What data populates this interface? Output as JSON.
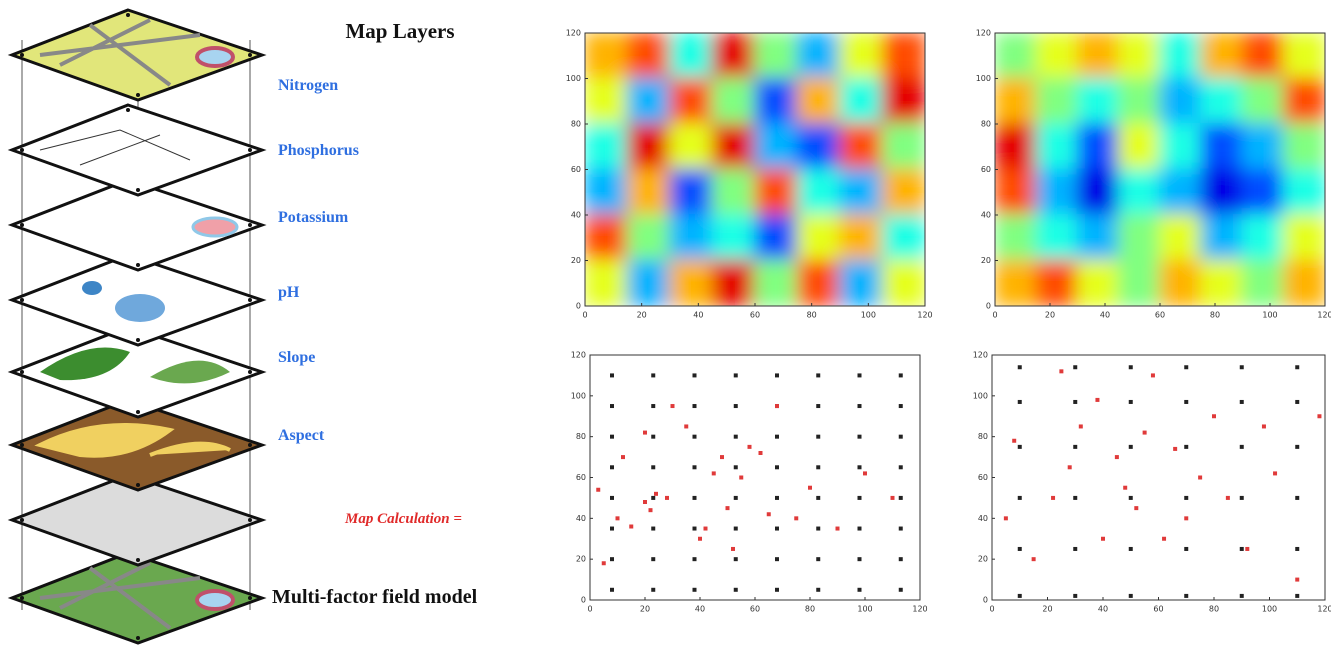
{
  "diagram": {
    "title": "Map Layers",
    "layers": [
      "Nitrogen",
      "Phosphorus",
      "Potassium",
      "pH",
      "Slope",
      "Aspect"
    ],
    "calculation": "Map Calculation =",
    "result": "Multi-factor field model"
  },
  "chart_data": [
    {
      "type": "heatmap",
      "colormap": "jet",
      "clim": [
        0,
        1
      ],
      "xlim": [
        0,
        120
      ],
      "ylim": [
        0,
        120
      ],
      "xticks": [
        0,
        20,
        40,
        60,
        80,
        100,
        120
      ],
      "yticks": [
        0,
        20,
        40,
        60,
        80,
        100,
        120
      ],
      "values": [
        [
          0.7,
          0.8,
          0.4,
          0.9,
          0.5,
          0.3,
          0.6,
          0.8
        ],
        [
          0.6,
          0.3,
          0.8,
          0.5,
          0.2,
          0.7,
          0.4,
          0.9
        ],
        [
          0.4,
          0.9,
          0.6,
          0.9,
          0.3,
          0.2,
          0.8,
          0.5
        ],
        [
          0.3,
          0.7,
          0.2,
          0.5,
          0.8,
          0.4,
          0.3,
          0.7
        ],
        [
          0.8,
          0.5,
          0.3,
          0.4,
          0.2,
          0.6,
          0.7,
          0.4
        ],
        [
          0.6,
          0.3,
          0.7,
          0.9,
          0.5,
          0.8,
          0.3,
          0.6
        ]
      ]
    },
    {
      "type": "heatmap",
      "colormap": "jet",
      "clim": [
        0,
        1
      ],
      "xlim": [
        0,
        120
      ],
      "ylim": [
        0,
        120
      ],
      "xticks": [
        0,
        20,
        40,
        60,
        80,
        100,
        120
      ],
      "yticks": [
        0,
        20,
        40,
        60,
        80,
        100,
        120
      ],
      "values": [
        [
          0.5,
          0.6,
          0.7,
          0.6,
          0.4,
          0.7,
          0.8,
          0.6
        ],
        [
          0.7,
          0.5,
          0.4,
          0.5,
          0.3,
          0.4,
          0.5,
          0.8
        ],
        [
          0.9,
          0.4,
          0.2,
          0.6,
          0.4,
          0.2,
          0.3,
          0.5
        ],
        [
          0.8,
          0.3,
          0.1,
          0.4,
          0.3,
          0.1,
          0.2,
          0.4
        ],
        [
          0.5,
          0.4,
          0.3,
          0.5,
          0.6,
          0.3,
          0.4,
          0.6
        ],
        [
          0.7,
          0.8,
          0.6,
          0.5,
          0.7,
          0.6,
          0.5,
          0.7
        ]
      ]
    },
    {
      "type": "scatter",
      "xlim": [
        0,
        120
      ],
      "ylim": [
        0,
        120
      ],
      "xticks": [
        0,
        20,
        40,
        60,
        80,
        100,
        120
      ],
      "yticks": [
        0,
        20,
        40,
        60,
        80,
        100,
        120
      ],
      "series": [
        {
          "color": "#222222",
          "x": [
            8,
            23,
            38,
            53,
            68,
            83,
            98,
            113,
            8,
            23,
            38,
            53,
            68,
            83,
            98,
            113,
            8,
            23,
            38,
            53,
            68,
            83,
            98,
            113,
            8,
            23,
            38,
            53,
            68,
            83,
            98,
            113,
            8,
            23,
            38,
            53,
            68,
            83,
            98,
            113,
            8,
            23,
            38,
            53,
            68,
            83,
            98,
            113,
            8,
            23,
            38,
            53,
            68,
            83,
            98,
            113,
            8,
            23,
            38,
            53,
            68,
            83,
            98,
            113
          ],
          "y": [
            5,
            5,
            5,
            5,
            5,
            5,
            5,
            5,
            20,
            20,
            20,
            20,
            20,
            20,
            20,
            20,
            35,
            35,
            35,
            35,
            35,
            35,
            35,
            35,
            50,
            50,
            50,
            50,
            50,
            50,
            50,
            50,
            65,
            65,
            65,
            65,
            65,
            65,
            65,
            65,
            80,
            80,
            80,
            80,
            80,
            80,
            80,
            80,
            95,
            95,
            95,
            95,
            95,
            95,
            95,
            95,
            110,
            110,
            110,
            110,
            110,
            110,
            110,
            110
          ]
        },
        {
          "color": "#e03a3a",
          "x": [
            3,
            5,
            10,
            12,
            15,
            20,
            22,
            24,
            28,
            30,
            35,
            40,
            42,
            45,
            48,
            50,
            55,
            58,
            62,
            65,
            68,
            75,
            80,
            90,
            100,
            110,
            20,
            52
          ],
          "y": [
            54,
            18,
            40,
            70,
            36,
            48,
            44,
            52,
            50,
            95,
            85,
            30,
            35,
            62,
            70,
            45,
            60,
            75,
            72,
            42,
            95,
            40,
            55,
            35,
            62,
            50,
            82,
            25
          ]
        }
      ]
    },
    {
      "type": "scatter",
      "xlim": [
        0,
        120
      ],
      "ylim": [
        0,
        120
      ],
      "xticks": [
        0,
        20,
        40,
        60,
        80,
        100,
        120
      ],
      "yticks": [
        0,
        20,
        40,
        60,
        80,
        100,
        120
      ],
      "series": [
        {
          "color": "#222222",
          "x": [
            10,
            30,
            50,
            70,
            90,
            110,
            10,
            30,
            50,
            70,
            90,
            110,
            10,
            30,
            50,
            70,
            90,
            110,
            10,
            30,
            50,
            70,
            90,
            110,
            10,
            30,
            50,
            70,
            90,
            110,
            10,
            30,
            50,
            70,
            90,
            110
          ],
          "y": [
            2,
            2,
            2,
            2,
            2,
            2,
            25,
            25,
            25,
            25,
            25,
            25,
            50,
            50,
            50,
            50,
            50,
            50,
            75,
            75,
            75,
            75,
            75,
            75,
            97,
            97,
            97,
            97,
            97,
            97,
            114,
            114,
            114,
            114,
            114,
            114
          ]
        },
        {
          "color": "#e03a3a",
          "x": [
            5,
            8,
            15,
            22,
            25,
            28,
            32,
            38,
            40,
            45,
            48,
            52,
            55,
            58,
            62,
            66,
            70,
            75,
            80,
            85,
            92,
            98,
            102,
            110,
            118
          ],
          "y": [
            40,
            78,
            20,
            50,
            112,
            65,
            85,
            98,
            30,
            70,
            55,
            45,
            82,
            110,
            30,
            74,
            40,
            60,
            90,
            50,
            25,
            85,
            62,
            10,
            90
          ]
        }
      ]
    }
  ]
}
